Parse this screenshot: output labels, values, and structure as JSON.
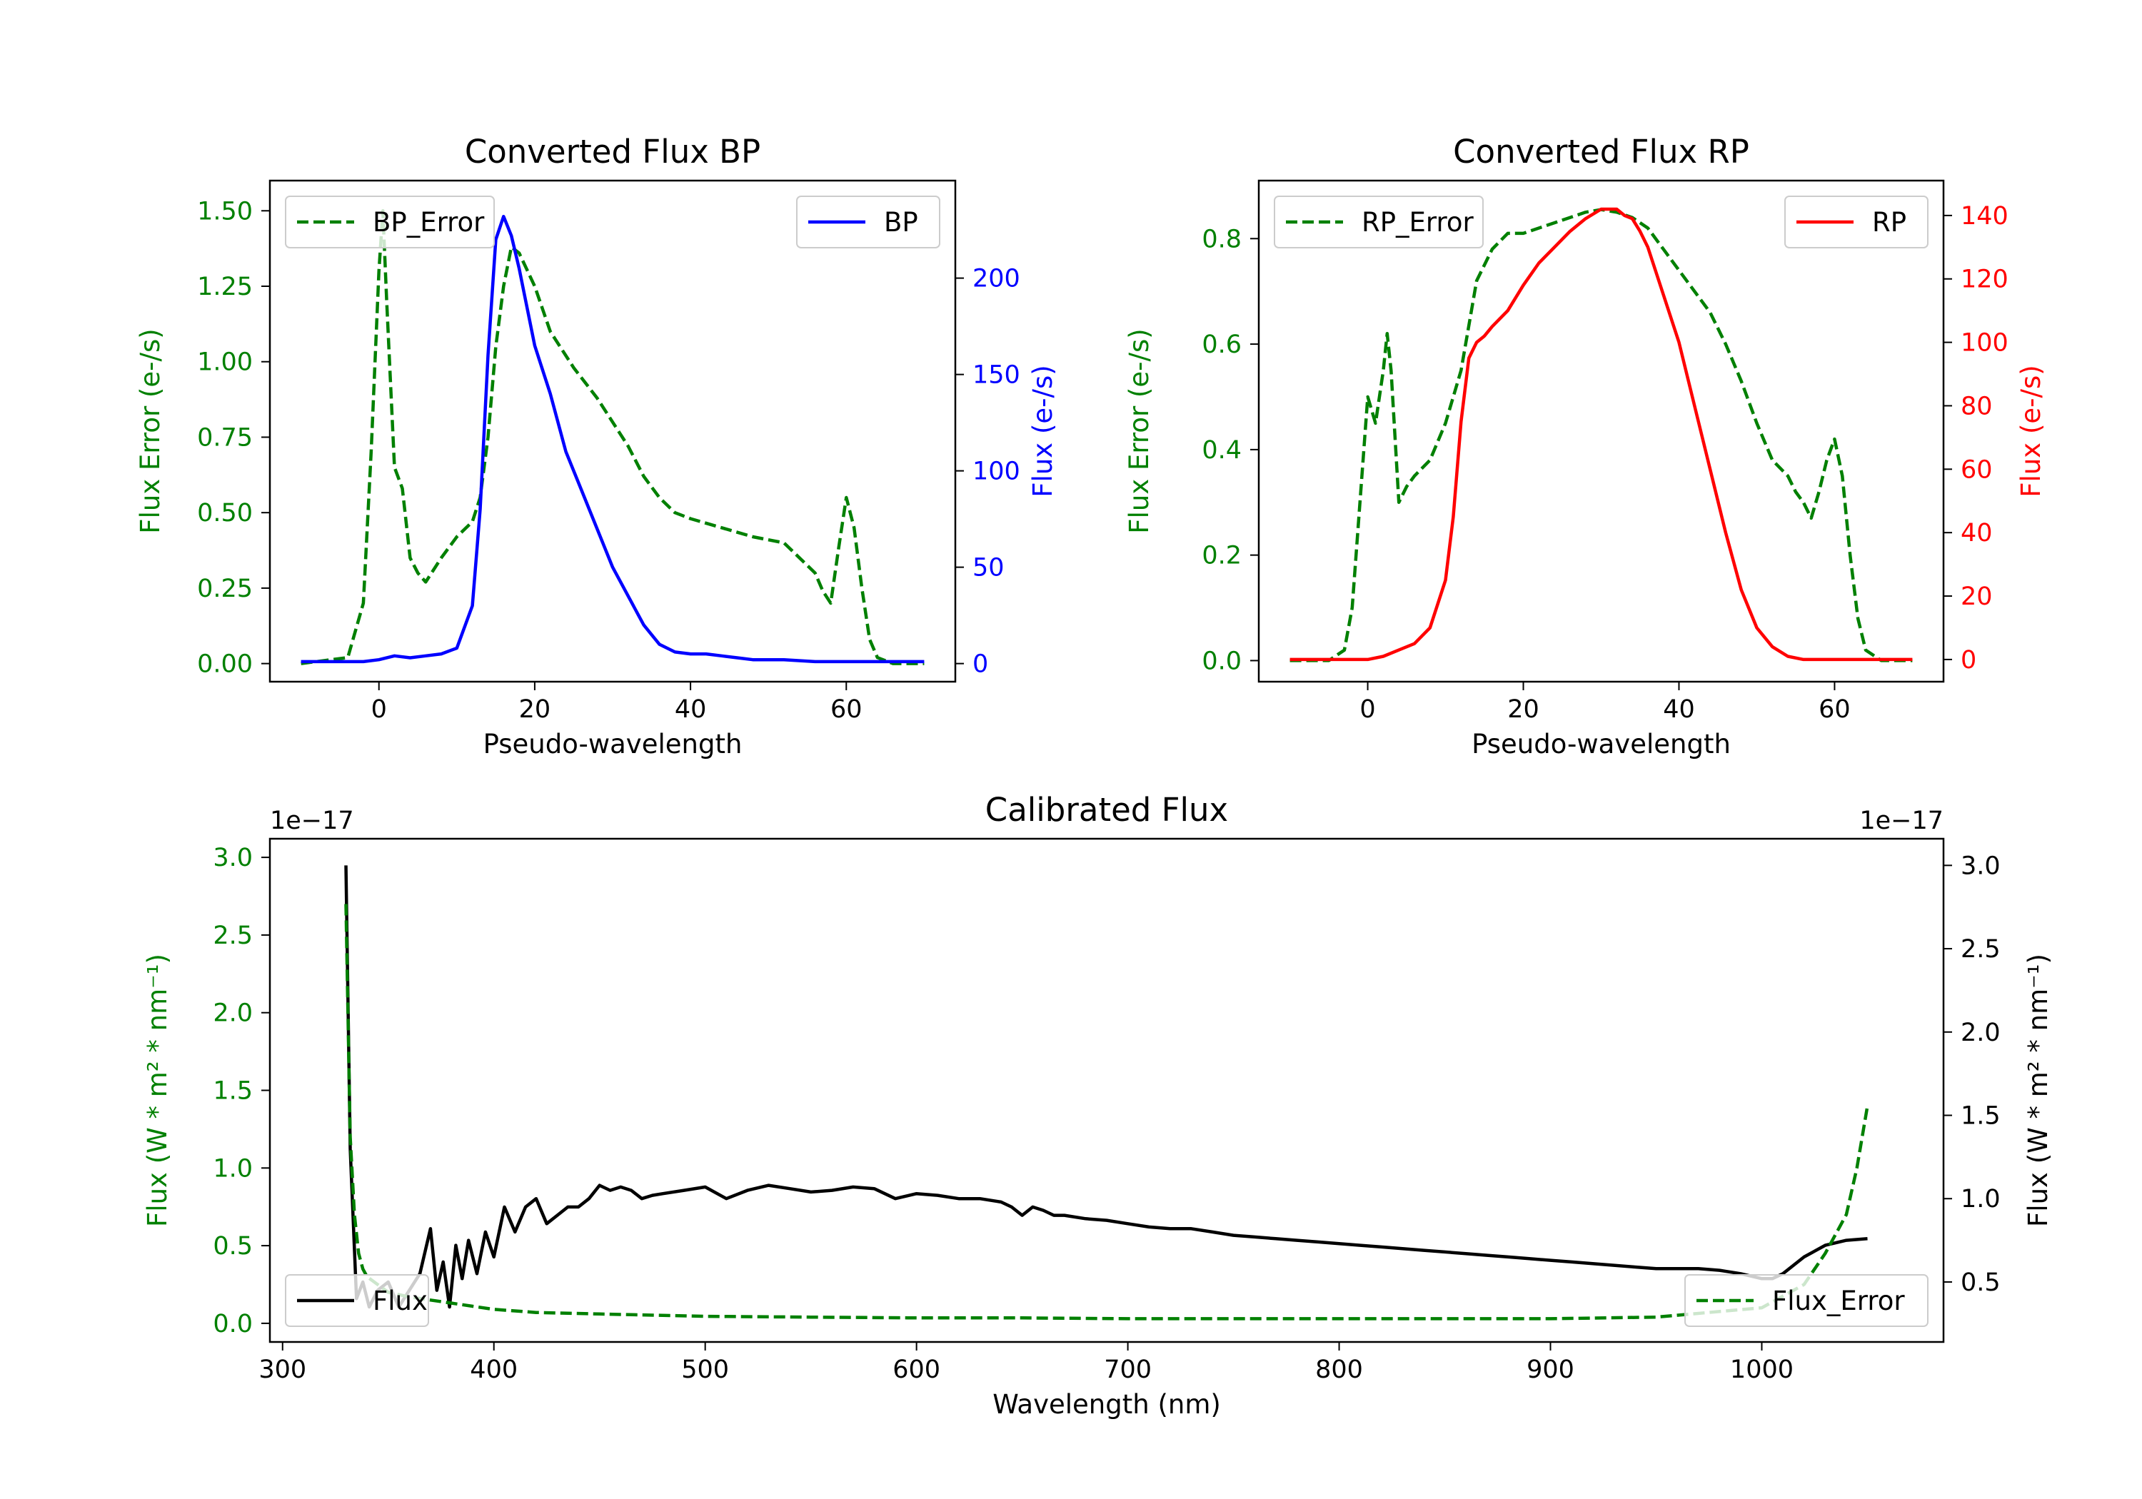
{
  "chart_data": [
    {
      "id": "bp",
      "type": "line",
      "title": "Converted Flux BP",
      "xlabel": "Pseudo-wavelength",
      "ylabel_left": "Flux Error (e-/s)",
      "ylabel_right": "Flux (e-/s)",
      "xlim": [
        -14,
        74
      ],
      "ylim_left": [
        -0.06,
        1.6
      ],
      "ylim_right": [
        -9.4,
        250.6
      ],
      "xticks": [
        0,
        20,
        40,
        60
      ],
      "yticks_left": [
        "0.00",
        "0.25",
        "0.50",
        "0.75",
        "1.00",
        "1.25",
        "1.50"
      ],
      "yticks_right": [
        "0",
        "50",
        "100",
        "150",
        "200"
      ],
      "colors": {
        "left": "#008000",
        "right": "#0000ff"
      },
      "series": [
        {
          "name": "BP_Error",
          "axis": "left",
          "style": "dashed",
          "color": "#008000",
          "legend": "top-left",
          "x": [
            -10,
            -4,
            -2,
            -1,
            0,
            0.5,
            1,
            2,
            3,
            4,
            5,
            6,
            8,
            10,
            12,
            13,
            14,
            15,
            16,
            17,
            18,
            20,
            22,
            25,
            28,
            30,
            32,
            34,
            36,
            38,
            40,
            44,
            48,
            52,
            54,
            56,
            57,
            58,
            59,
            60,
            61,
            62,
            63,
            64,
            66,
            70
          ],
          "values": [
            0.0,
            0.02,
            0.2,
            0.7,
            1.3,
            1.5,
            1.2,
            0.65,
            0.58,
            0.35,
            0.3,
            0.27,
            0.35,
            0.42,
            0.47,
            0.55,
            0.75,
            1.05,
            1.25,
            1.38,
            1.36,
            1.25,
            1.1,
            0.98,
            0.88,
            0.8,
            0.72,
            0.62,
            0.55,
            0.5,
            0.48,
            0.45,
            0.42,
            0.4,
            0.35,
            0.3,
            0.24,
            0.2,
            0.38,
            0.55,
            0.45,
            0.25,
            0.08,
            0.02,
            0.0,
            0.0
          ]
        },
        {
          "name": "BP",
          "axis": "right",
          "style": "solid",
          "color": "#0000ff",
          "legend": "top-right",
          "x": [
            -10,
            -2,
            0,
            2,
            4,
            6,
            8,
            10,
            12,
            13,
            14,
            15,
            16,
            17,
            18,
            20,
            22,
            24,
            26,
            28,
            30,
            32,
            34,
            36,
            38,
            40,
            42,
            44,
            46,
            48,
            52,
            56,
            60,
            64,
            70
          ],
          "values": [
            1,
            1,
            2,
            4,
            3,
            4,
            5,
            8,
            30,
            80,
            160,
            220,
            232,
            222,
            205,
            165,
            140,
            110,
            90,
            70,
            50,
            35,
            20,
            10,
            6,
            5,
            5,
            4,
            3,
            2,
            2,
            1,
            1,
            1,
            1
          ]
        }
      ]
    },
    {
      "id": "rp",
      "type": "line",
      "title": "Converted Flux RP",
      "xlabel": "Pseudo-wavelength",
      "ylabel_left": "Flux Error (e-/s)",
      "ylabel_right": "Flux (e-/s)",
      "xlim": [
        -14,
        74
      ],
      "ylim_left": [
        -0.04,
        0.91
      ],
      "ylim_right": [
        -7.0,
        151.0
      ],
      "xticks": [
        0,
        20,
        40,
        60
      ],
      "yticks_left": [
        "0.0",
        "0.2",
        "0.4",
        "0.6",
        "0.8"
      ],
      "yticks_right": [
        "0",
        "20",
        "40",
        "60",
        "80",
        "100",
        "120",
        "140"
      ],
      "colors": {
        "left": "#008000",
        "right": "#ff0000"
      },
      "series": [
        {
          "name": "RP_Error",
          "axis": "left",
          "style": "dashed",
          "color": "#008000",
          "legend": "top-left",
          "x": [
            -10,
            -5,
            -3,
            -2,
            -1,
            0,
            1,
            2,
            2.5,
            3,
            4,
            5,
            6,
            8,
            10,
            12,
            14,
            16,
            18,
            20,
            24,
            28,
            30,
            32,
            34,
            36,
            38,
            40,
            42,
            44,
            46,
            48,
            50,
            52,
            54,
            55,
            56,
            57,
            58,
            59,
            60,
            61,
            62,
            63,
            64,
            66,
            70
          ],
          "values": [
            0.0,
            0.0,
            0.02,
            0.1,
            0.3,
            0.5,
            0.45,
            0.55,
            0.62,
            0.55,
            0.3,
            0.33,
            0.35,
            0.38,
            0.45,
            0.55,
            0.72,
            0.78,
            0.81,
            0.81,
            0.83,
            0.85,
            0.855,
            0.85,
            0.84,
            0.82,
            0.78,
            0.74,
            0.7,
            0.66,
            0.6,
            0.53,
            0.45,
            0.38,
            0.35,
            0.32,
            0.3,
            0.27,
            0.32,
            0.38,
            0.42,
            0.35,
            0.2,
            0.08,
            0.02,
            0.0,
            0.0
          ]
        },
        {
          "name": "RP",
          "axis": "right",
          "style": "solid",
          "color": "#ff0000",
          "legend": "top-right",
          "x": [
            -10,
            -4,
            0,
            2,
            4,
            6,
            8,
            10,
            11,
            12,
            13,
            14,
            15,
            16,
            18,
            20,
            22,
            24,
            26,
            28,
            30,
            32,
            33,
            34,
            35,
            36,
            38,
            40,
            42,
            44,
            46,
            48,
            50,
            52,
            54,
            56,
            60,
            70
          ],
          "values": [
            0,
            0,
            0,
            1,
            3,
            5,
            10,
            25,
            45,
            75,
            95,
            100,
            102,
            105,
            110,
            118,
            125,
            130,
            135,
            139,
            142,
            142,
            140,
            139,
            135,
            130,
            115,
            100,
            80,
            60,
            40,
            22,
            10,
            4,
            1,
            0,
            0,
            0
          ]
        }
      ]
    },
    {
      "id": "cal",
      "type": "line",
      "title": "Calibrated Flux",
      "xlabel": "Wavelength (nm)",
      "ylabel_left": "Flux (W * m² * nm⁻¹)",
      "ylabel_right": "Flux (W * m² * nm⁻¹)",
      "offset_left": "1e−17",
      "offset_right": "1e−17",
      "xlim": [
        294,
        1086
      ],
      "ylim_left": [
        -0.12,
        3.12
      ],
      "ylim_right": [
        0.14,
        3.16
      ],
      "xticks": [
        300,
        400,
        500,
        600,
        700,
        800,
        900,
        1000
      ],
      "yticks_left": [
        "0.0",
        "0.5",
        "1.0",
        "1.5",
        "2.0",
        "2.5",
        "3.0"
      ],
      "yticks_right": [
        "0.5",
        "1.0",
        "1.5",
        "2.0",
        "2.5",
        "3.0"
      ],
      "colors": {
        "left": "#008000",
        "right": "#000000"
      },
      "series": [
        {
          "name": "Flux",
          "axis": "right",
          "style": "solid",
          "color": "#000000",
          "legend": "bottom-left",
          "x": [
            330,
            332,
            335,
            338,
            341,
            345,
            350,
            355,
            360,
            365,
            370,
            373,
            376,
            379,
            382,
            385,
            388,
            392,
            396,
            400,
            405,
            410,
            415,
            420,
            425,
            430,
            435,
            440,
            445,
            450,
            455,
            460,
            465,
            470,
            475,
            480,
            490,
            500,
            510,
            520,
            530,
            540,
            550,
            560,
            570,
            580,
            590,
            600,
            610,
            620,
            630,
            640,
            645,
            650,
            655,
            660,
            665,
            670,
            680,
            690,
            700,
            710,
            720,
            730,
            740,
            750,
            760,
            770,
            780,
            790,
            800,
            810,
            820,
            830,
            840,
            850,
            860,
            870,
            880,
            890,
            900,
            910,
            920,
            930,
            940,
            950,
            960,
            970,
            980,
            990,
            1000,
            1005,
            1010,
            1020,
            1030,
            1040,
            1050
          ],
          "values": [
            3.0,
            1.3,
            0.4,
            0.5,
            0.35,
            0.45,
            0.5,
            0.35,
            0.45,
            0.55,
            0.82,
            0.45,
            0.62,
            0.35,
            0.72,
            0.52,
            0.75,
            0.55,
            0.8,
            0.65,
            0.95,
            0.8,
            0.95,
            1.0,
            0.85,
            0.9,
            0.95,
            0.95,
            1.0,
            1.08,
            1.05,
            1.07,
            1.05,
            1.0,
            1.02,
            1.03,
            1.05,
            1.07,
            1.0,
            1.05,
            1.08,
            1.06,
            1.04,
            1.05,
            1.07,
            1.06,
            1.0,
            1.03,
            1.02,
            1.0,
            1.0,
            0.98,
            0.95,
            0.9,
            0.95,
            0.93,
            0.9,
            0.9,
            0.88,
            0.87,
            0.85,
            0.83,
            0.82,
            0.82,
            0.8,
            0.78,
            0.77,
            0.76,
            0.75,
            0.74,
            0.73,
            0.72,
            0.71,
            0.7,
            0.69,
            0.68,
            0.67,
            0.66,
            0.65,
            0.64,
            0.63,
            0.62,
            0.61,
            0.6,
            0.59,
            0.58,
            0.58,
            0.58,
            0.57,
            0.55,
            0.52,
            0.52,
            0.55,
            0.65,
            0.72,
            0.75,
            0.76
          ]
        },
        {
          "name": "Flux_Error",
          "axis": "left",
          "style": "dashed",
          "color": "#008000",
          "legend": "bottom-right",
          "x": [
            330,
            332,
            334,
            336,
            338,
            340,
            345,
            350,
            360,
            370,
            380,
            390,
            400,
            420,
            450,
            500,
            550,
            600,
            650,
            700,
            750,
            800,
            850,
            900,
            950,
            1000,
            1020,
            1030,
            1040,
            1045,
            1050
          ],
          "values": [
            2.7,
            1.2,
            0.7,
            0.45,
            0.35,
            0.3,
            0.25,
            0.2,
            0.17,
            0.15,
            0.13,
            0.11,
            0.09,
            0.07,
            0.06,
            0.045,
            0.04,
            0.035,
            0.035,
            0.03,
            0.03,
            0.03,
            0.03,
            0.03,
            0.04,
            0.1,
            0.25,
            0.45,
            0.7,
            1.0,
            1.4
          ]
        }
      ]
    }
  ]
}
